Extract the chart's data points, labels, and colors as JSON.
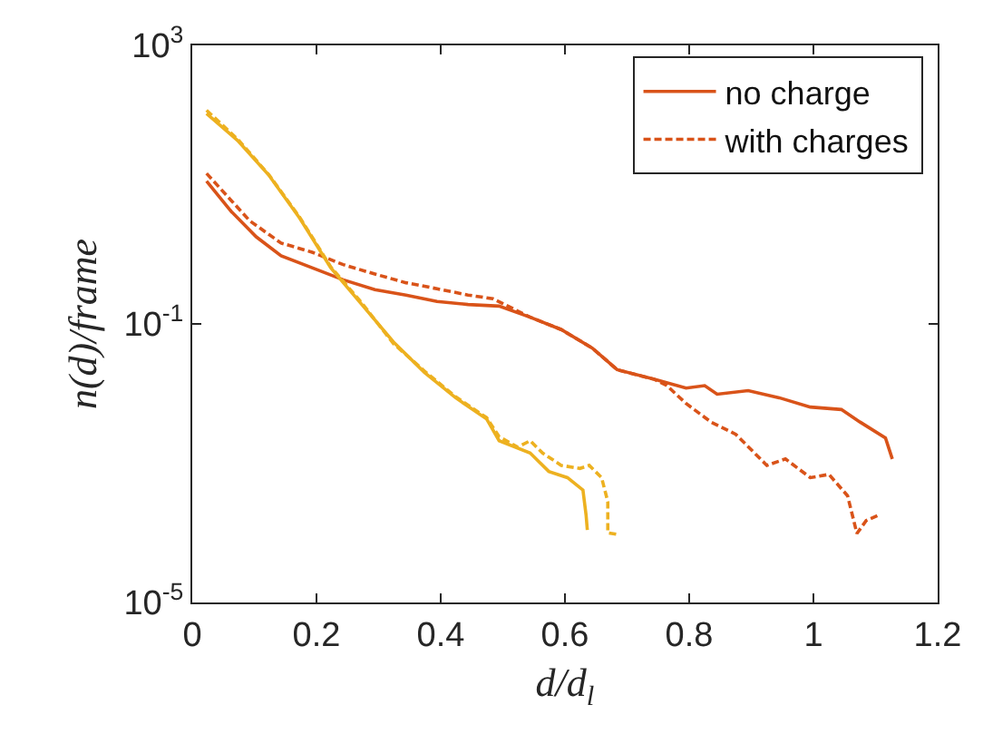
{
  "chart_data": {
    "type": "line",
    "xlabel": "d/d$_{l}$",
    "ylabel": "n(d)/frame",
    "log": "y",
    "grid": false,
    "legend": "top right",
    "marker": "none",
    "xlim": [
      0,
      1.2
    ],
    "xticks": [
      0,
      0.2,
      0.4,
      0.6,
      0.8,
      1,
      1.2
    ],
    "ylim": [
      1e-05,
      1000
    ],
    "yticks": [
      {
        "value": 1e-05,
        "label": "10$^{-5}$"
      },
      {
        "value": 0.1,
        "label": "10$^{-1}$"
      },
      {
        "value": 1000,
        "label": "10$^{3}$"
      }
    ],
    "series": [
      {
        "name": "no charge",
        "color": "#d95319",
        "line_style": "solid",
        "x": [
          0.023,
          0.063,
          0.103,
          0.143,
          0.193,
          0.243,
          0.294,
          0.344,
          0.394,
          0.444,
          0.494,
          0.544,
          0.594,
          0.644,
          0.684,
          0.744,
          0.795,
          0.825,
          0.845,
          0.895,
          0.945,
          0.995,
          1.045,
          1.075,
          1.116,
          1.127
        ],
        "values": [
          11.2,
          4.1,
          1.78,
          0.95,
          0.64,
          0.43,
          0.31,
          0.26,
          0.21,
          0.19,
          0.18,
          0.125,
          0.083,
          0.045,
          0.022,
          0.016,
          0.012,
          0.013,
          0.0098,
          0.011,
          0.0087,
          0.0064,
          0.0059,
          0.0039,
          0.0023,
          0.00115
        ]
      },
      {
        "name": "with charges",
        "color": "#d95319",
        "line_style": "dashed",
        "x": [
          0.023,
          0.093,
          0.143,
          0.193,
          0.243,
          0.294,
          0.344,
          0.394,
          0.444,
          0.484,
          0.544,
          0.594,
          0.644,
          0.684,
          0.744,
          0.764,
          0.795,
          0.835,
          0.875,
          0.925,
          0.955,
          0.995,
          1.025,
          1.055,
          1.07,
          1.085,
          1.105
        ],
        "values": [
          14.5,
          3.0,
          1.45,
          1.07,
          0.71,
          0.52,
          0.39,
          0.32,
          0.26,
          0.23,
          0.125,
          0.083,
          0.045,
          0.022,
          0.016,
          0.013,
          0.0072,
          0.0039,
          0.0026,
          0.00093,
          0.00115,
          0.00062,
          0.00069,
          0.00034,
          9.77e-05,
          0.00015,
          0.00018
        ]
      },
      {
        "color": "#edb120",
        "line_style": "solid",
        "x": [
          0.023,
          0.073,
          0.123,
          0.173,
          0.223,
          0.273,
          0.324,
          0.374,
          0.424,
          0.474,
          0.494,
          0.544,
          0.574,
          0.604,
          0.629,
          0.634,
          0.636
        ],
        "values": [
          105,
          43,
          13.8,
          3.3,
          0.64,
          0.19,
          0.055,
          0.02,
          0.0087,
          0.0043,
          0.0021,
          0.0014,
          0.00076,
          0.00062,
          0.00041,
          0.00018,
          0.00011
        ]
      },
      {
        "color": "#edb120",
        "line_style": "dashed",
        "x": [
          0.023,
          0.073,
          0.123,
          0.173,
          0.223,
          0.273,
          0.324,
          0.374,
          0.424,
          0.474,
          0.494,
          0.524,
          0.544,
          0.564,
          0.594,
          0.624,
          0.639,
          0.659,
          0.669,
          0.669,
          0.684
        ],
        "values": [
          117,
          45,
          14,
          3.4,
          0.66,
          0.2,
          0.052,
          0.021,
          0.009,
          0.0045,
          0.0024,
          0.0017,
          0.0021,
          0.0014,
          0.00093,
          0.00084,
          0.00093,
          0.00062,
          0.00028,
          0.0001,
          9.5e-05
        ]
      }
    ]
  }
}
